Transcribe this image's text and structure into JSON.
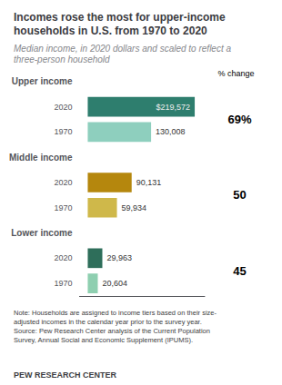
{
  "chart_data": {
    "type": "bar",
    "orientation": "horizontal",
    "title": "Incomes rose the most for upper-income\nhouseholds in U.S. from 1970 to 2020",
    "subtitle": "Median income, in 2020 dollars and scaled to reflect a\nthree-person household",
    "categories": [
      "Upper income",
      "Middle income",
      "Lower income"
    ],
    "series": [
      {
        "name": "2020",
        "colors": [
          "#2e7e6e",
          "#b5870d",
          "#2e6e5a"
        ],
        "values": [
          219572,
          90131,
          29963
        ],
        "value_labels": [
          "$219,572",
          "90,131",
          "29,963"
        ]
      },
      {
        "name": "1970",
        "colors": [
          "#8ecfbe",
          "#cfb84a",
          "#8ecfb0"
        ],
        "values": [
          130008,
          59934,
          20604
        ],
        "value_labels": [
          "130,008",
          "59,934",
          "20,604"
        ]
      }
    ],
    "xlim": [
      -16800,
      240000
    ],
    "tick_labels": false,
    "grid": false,
    "data_labels": true,
    "pct_change_header": "% change",
    "pct_change": [
      "69%",
      "50",
      "45"
    ],
    "note": "Note: Households are assigned to income tiers based on their size-\nadjusted incomes in the calendar year prior to the survey year.\nSource: Pew Research Center analysis of the Current Population\nSurvey, Annual Social and Economic Supplement (IPUMS).",
    "source": "PEW RESEARCH CENTER"
  }
}
